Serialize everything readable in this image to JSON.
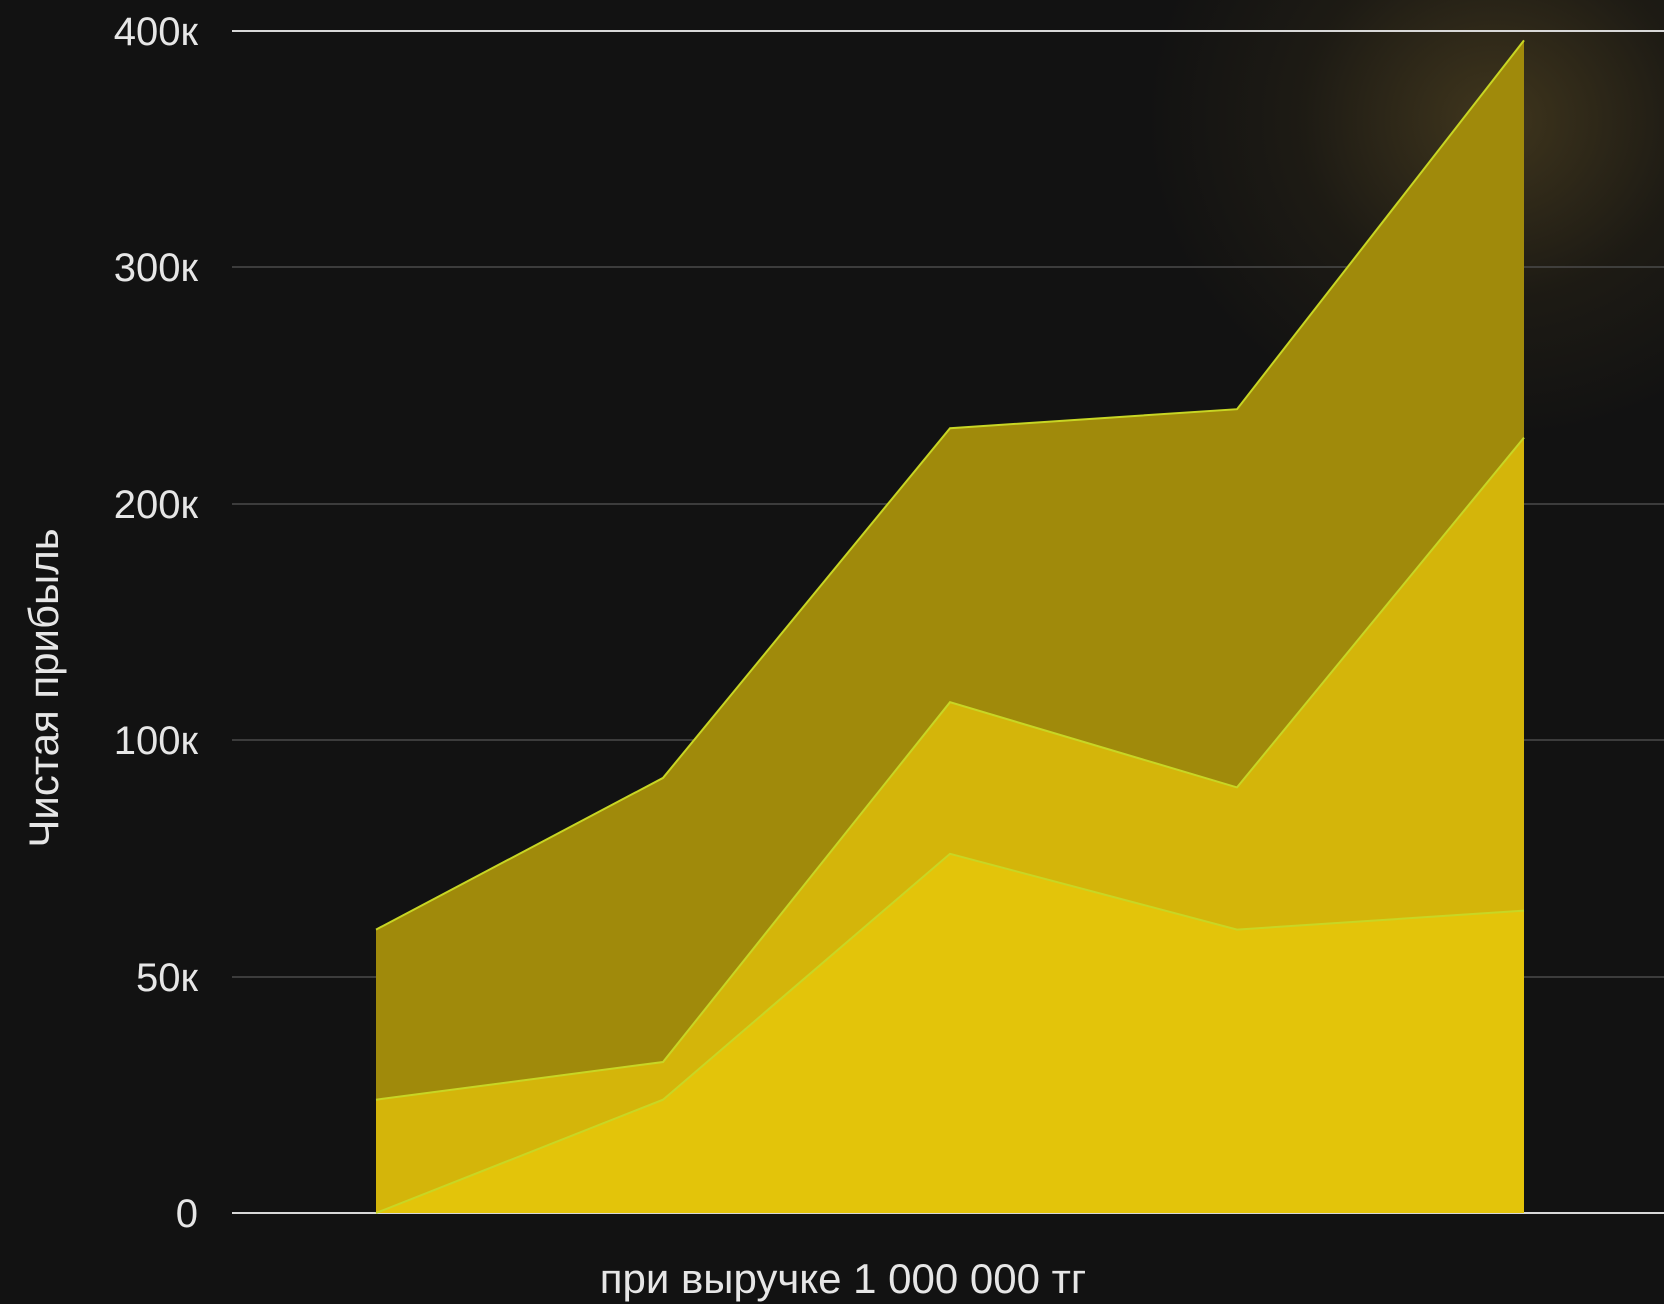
{
  "chart_data": {
    "type": "area",
    "title": "",
    "xlabel": "при выручке 1 000 000 тг",
    "ylabel": "Чистая прибыль",
    "x": [
      1,
      2,
      3,
      4,
      5
    ],
    "y_ticks": [
      {
        "value": 0,
        "label": "0"
      },
      {
        "value": 50000,
        "label": "50к"
      },
      {
        "value": 100000,
        "label": "100к"
      },
      {
        "value": 200000,
        "label": "200к"
      },
      {
        "value": 300000,
        "label": "300к"
      },
      {
        "value": 400000,
        "label": "400к"
      }
    ],
    "ylim": [
      0,
      400000
    ],
    "grid": true,
    "legend": "none",
    "series": [
      {
        "values": [
          60000,
          92000,
          232000,
          240000,
          396000
        ],
        "color": "#a08a0b"
      },
      {
        "values": [
          24000,
          32000,
          116000,
          90000,
          228000
        ],
        "color": "#d4b50a"
      },
      {
        "values": [
          0,
          24000,
          76000,
          60000,
          64000
        ],
        "color": "#e3c40a"
      }
    ],
    "edge_color": "#c8d624"
  }
}
